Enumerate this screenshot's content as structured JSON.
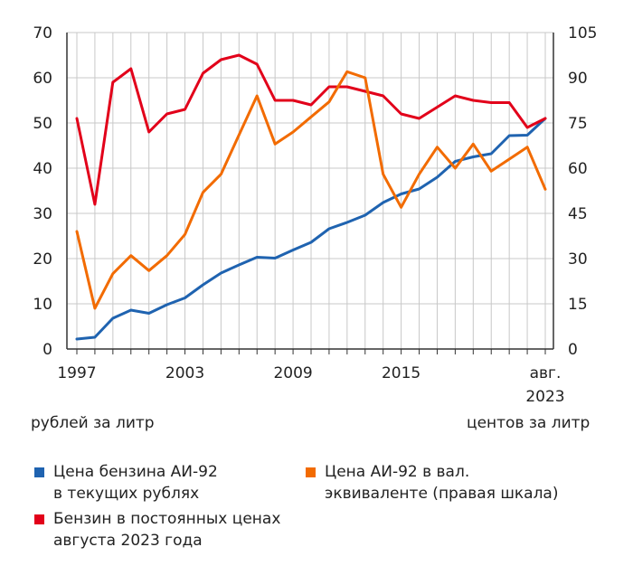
{
  "colors": {
    "blue": "#1f63b0",
    "red": "#e2001a",
    "orange": "#f26b00",
    "grid": "#c8c8c8",
    "axis": "#333333"
  },
  "units": {
    "left": "рублей за литр",
    "right": "центов за литр"
  },
  "legend": [
    {
      "key": "blue",
      "lines": [
        "Цена бензина АИ-92",
        "в текущих рублях"
      ]
    },
    {
      "key": "orange",
      "lines": [
        "Цена АИ-92 в вал.",
        "эквиваленте (правая шкала)"
      ]
    },
    {
      "key": "red",
      "lines": [
        "Бензин в постоянных ценах",
        "августа 2023 года"
      ]
    }
  ],
  "chart_data": {
    "type": "line",
    "x": [
      "1997",
      "1998",
      "1999",
      "2000",
      "2001",
      "2002",
      "2003",
      "2004",
      "2005",
      "2006",
      "2007",
      "2008",
      "2009",
      "2010",
      "2011",
      "2012",
      "2013",
      "2014",
      "2015",
      "2016",
      "2017",
      "2018",
      "2019",
      "2020",
      "2021",
      "2022",
      "авг. 2023"
    ],
    "x_tick_labels": [
      "1997",
      "2003",
      "2009",
      "2015",
      "авг.",
      "2023"
    ],
    "y_left": {
      "ylim": [
        0,
        70
      ],
      "ticks": [
        "0",
        "10",
        "20",
        "30",
        "40",
        "50",
        "60",
        "70"
      ]
    },
    "y_right": {
      "ylim": [
        0,
        105
      ],
      "ticks": [
        "0",
        "15",
        "30",
        "45",
        "60",
        "75",
        "90",
        "105"
      ]
    },
    "grid": true,
    "series": [
      {
        "name": "Цена бензина АИ-92 в текущих рублях",
        "color": "#1f63b0",
        "axis": "left",
        "values": [
          2.2,
          2.6,
          6.8,
          8.6,
          7.9,
          9.8,
          11.3,
          14.2,
          16.8,
          18.6,
          20.3,
          20.1,
          21.9,
          23.6,
          26.6,
          28.0,
          29.6,
          32.4,
          34.3,
          35.4,
          38.0,
          41.5,
          42.5,
          43.2,
          47.2,
          47.3,
          51.0
        ]
      },
      {
        "name": "Бензин в постоянных ценах августа 2023 года",
        "color": "#e2001a",
        "axis": "left",
        "values": [
          51,
          32,
          59,
          62,
          48,
          52,
          53,
          61,
          64,
          65,
          63,
          55,
          55,
          54,
          58,
          58,
          57,
          56,
          52,
          51,
          53.5,
          56,
          55,
          54.5,
          54.5,
          49,
          51
        ]
      },
      {
        "name": "Цена АИ-92 в вал. эквиваленте (правая шкала)",
        "color": "#f26b00",
        "axis": "right",
        "values": [
          39,
          13.5,
          25,
          31,
          26,
          31,
          38,
          52,
          58,
          71,
          84,
          68,
          72,
          77,
          82,
          92,
          90,
          58,
          47,
          58,
          67,
          60,
          68,
          59,
          63,
          67,
          53
        ]
      }
    ]
  }
}
